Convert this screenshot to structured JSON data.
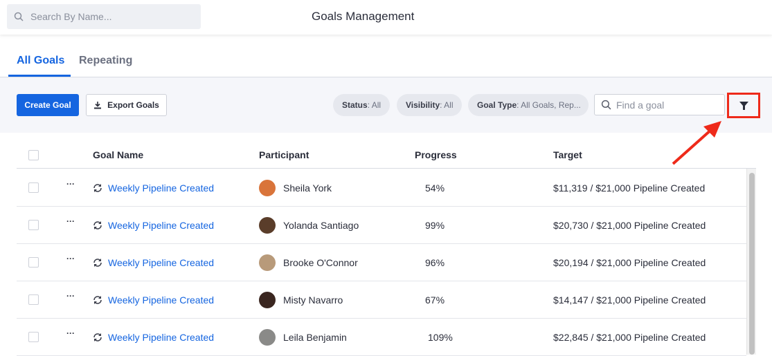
{
  "header": {
    "search_placeholder": "Search By Name...",
    "title": "Goals Management"
  },
  "tabs": [
    {
      "label": "All Goals",
      "active": true
    },
    {
      "label": "Repeating",
      "active": false
    }
  ],
  "toolbar": {
    "create_label": "Create Goal",
    "export_label": "Export Goals",
    "filters": [
      {
        "key": "Status",
        "value": ": All"
      },
      {
        "key": "Visibility",
        "value": ": All"
      },
      {
        "key": "Goal Type",
        "value": ": All Goals, Rep..."
      }
    ],
    "find_placeholder": "Find a goal",
    "filter_icon": "funnel-icon"
  },
  "table": {
    "columns": [
      "Goal Name",
      "Participant",
      "Progress",
      "Target"
    ],
    "rows": [
      {
        "goal": "Weekly Pipeline Created",
        "participant": "Sheila York",
        "progress": "54%",
        "target": "$11,319 / $21,000 Pipeline Created",
        "avatar_color": "#d9743a"
      },
      {
        "goal": "Weekly Pipeline Created",
        "participant": "Yolanda Santiago",
        "progress": "99%",
        "target": "$20,730 / $21,000 Pipeline Created",
        "avatar_color": "#5a3d2a"
      },
      {
        "goal": "Weekly Pipeline Created",
        "participant": "Brooke O'Connor",
        "progress": "96%",
        "target": "$20,194 / $21,000 Pipeline Created",
        "avatar_color": "#b89a7a"
      },
      {
        "goal": "Weekly Pipeline Created",
        "participant": "Misty Navarro",
        "progress": "67%",
        "target": "$14,147 / $21,000 Pipeline Created",
        "avatar_color": "#3a2620"
      },
      {
        "goal": "Weekly Pipeline Created",
        "participant": "Leila Benjamin",
        "progress": "109%",
        "target": "$22,845 / $21,000 Pipeline Created",
        "avatar_color": "#8a8a88"
      }
    ]
  },
  "colors": {
    "accent": "#1565e0",
    "highlight": "#ee2a1a"
  }
}
